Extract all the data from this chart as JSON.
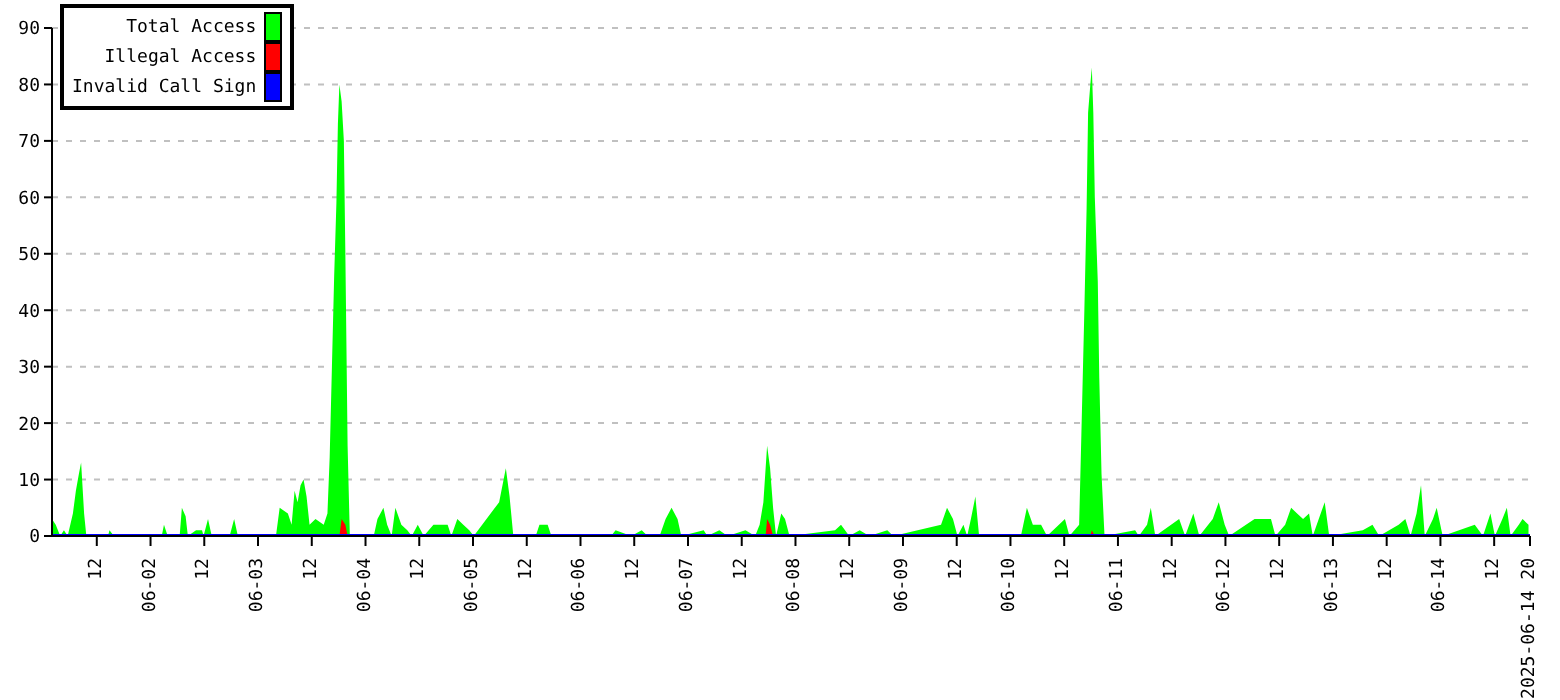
{
  "chart_data": {
    "type": "area",
    "xlim": [
      "2025-06-01T02:00",
      "2025-06-14T20:00"
    ],
    "xticks": [
      {
        "value": "2025-06-01T12:00",
        "label": "12"
      },
      {
        "value": "2025-06-02T00:00",
        "label": "06-02"
      },
      {
        "value": "2025-06-02T12:00",
        "label": "12"
      },
      {
        "value": "2025-06-03T00:00",
        "label": "06-03"
      },
      {
        "value": "2025-06-03T12:00",
        "label": "12"
      },
      {
        "value": "2025-06-04T00:00",
        "label": "06-04"
      },
      {
        "value": "2025-06-04T12:00",
        "label": "12"
      },
      {
        "value": "2025-06-05T00:00",
        "label": "06-05"
      },
      {
        "value": "2025-06-05T12:00",
        "label": "12"
      },
      {
        "value": "2025-06-06T00:00",
        "label": "06-06"
      },
      {
        "value": "2025-06-06T12:00",
        "label": "12"
      },
      {
        "value": "2025-06-07T00:00",
        "label": "06-07"
      },
      {
        "value": "2025-06-07T12:00",
        "label": "12"
      },
      {
        "value": "2025-06-08T00:00",
        "label": "06-08"
      },
      {
        "value": "2025-06-08T12:00",
        "label": "12"
      },
      {
        "value": "2025-06-09T00:00",
        "label": "06-09"
      },
      {
        "value": "2025-06-09T12:00",
        "label": "12"
      },
      {
        "value": "2025-06-10T00:00",
        "label": "06-10"
      },
      {
        "value": "2025-06-10T12:00",
        "label": "12"
      },
      {
        "value": "2025-06-11T00:00",
        "label": "06-11"
      },
      {
        "value": "2025-06-11T12:00",
        "label": "12"
      },
      {
        "value": "2025-06-12T00:00",
        "label": "06-12"
      },
      {
        "value": "2025-06-12T12:00",
        "label": "12"
      },
      {
        "value": "2025-06-13T00:00",
        "label": "06-13"
      },
      {
        "value": "2025-06-13T12:00",
        "label": "12"
      },
      {
        "value": "2025-06-14T00:00",
        "label": "06-14"
      },
      {
        "value": "2025-06-14T12:00",
        "label": "12"
      },
      {
        "value": "2025-06-14T20:00",
        "label": "2025-06-14 20"
      }
    ],
    "ylim": [
      0,
      90
    ],
    "yticks": [
      0,
      10,
      20,
      30,
      40,
      50,
      60,
      70,
      80,
      90
    ],
    "grid": "y",
    "legend": "top left",
    "series": [
      {
        "name": "Total Access",
        "color": "#00ff00",
        "x": [
          "2025-06-01T02:00",
          "2025-06-01T02:50",
          "2025-06-01T03:50",
          "2025-06-01T04:40",
          "2025-06-01T05:30",
          "2025-06-01T06:40",
          "2025-06-01T07:20",
          "2025-06-01T08:00",
          "2025-06-01T08:30",
          "2025-06-01T09:10",
          "2025-06-01T09:40",
          "2025-06-01T14:30",
          "2025-06-01T14:50",
          "2025-06-01T15:50",
          "2025-06-02T02:30",
          "2025-06-02T03:00",
          "2025-06-02T03:50",
          "2025-06-02T06:30",
          "2025-06-02T07:00",
          "2025-06-02T07:50",
          "2025-06-02T08:20",
          "2025-06-02T10:10",
          "2025-06-02T11:30",
          "2025-06-02T11:50",
          "2025-06-02T12:50",
          "2025-06-02T13:40",
          "2025-06-02T17:40",
          "2025-06-02T18:40",
          "2025-06-02T19:30",
          "2025-06-03T04:00",
          "2025-06-03T04:50",
          "2025-06-03T06:40",
          "2025-06-03T07:30",
          "2025-06-03T08:10",
          "2025-06-03T08:50",
          "2025-06-03T09:30",
          "2025-06-03T10:10",
          "2025-06-03T10:50",
          "2025-06-03T11:30",
          "2025-06-03T12:50",
          "2025-06-03T14:40",
          "2025-06-03T15:30",
          "2025-06-03T16:00",
          "2025-06-03T16:30",
          "2025-06-03T17:00",
          "2025-06-03T17:30",
          "2025-06-03T17:50",
          "2025-06-03T18:10",
          "2025-06-03T18:40",
          "2025-06-03T19:10",
          "2025-06-03T19:30",
          "2025-06-03T20:00",
          "2025-06-03T20:30",
          "2025-06-04T01:50",
          "2025-06-04T02:40",
          "2025-06-04T04:00",
          "2025-06-04T04:50",
          "2025-06-04T05:50",
          "2025-06-04T06:40",
          "2025-06-04T08:00",
          "2025-06-04T09:20",
          "2025-06-04T10:20",
          "2025-06-04T11:40",
          "2025-06-04T13:00",
          "2025-06-04T15:10",
          "2025-06-04T18:20",
          "2025-06-04T19:10",
          "2025-06-04T20:30",
          "2025-06-04T21:50",
          "2025-06-04T23:10",
          "2025-06-05T00:10",
          "2025-06-05T05:50",
          "2025-06-05T06:50",
          "2025-06-05T07:20",
          "2025-06-05T08:10",
          "2025-06-05T09:00",
          "2025-06-05T14:00",
          "2025-06-05T14:50",
          "2025-06-05T16:40",
          "2025-06-05T17:30",
          "2025-06-06T06:50",
          "2025-06-06T07:50",
          "2025-06-06T11:20",
          "2025-06-06T13:40",
          "2025-06-06T15:00",
          "2025-06-06T17:40",
          "2025-06-06T19:00",
          "2025-06-06T20:20",
          "2025-06-06T21:40",
          "2025-06-06T22:30",
          "2025-06-07T03:30",
          "2025-06-07T04:20",
          "2025-06-07T07:00",
          "2025-06-07T08:50",
          "2025-06-07T12:50",
          "2025-06-07T15:00",
          "2025-06-07T16:00",
          "2025-06-07T16:50",
          "2025-06-07T17:20",
          "2025-06-07T17:40",
          "2025-06-07T18:20",
          "2025-06-07T19:00",
          "2025-06-07T19:40",
          "2025-06-07T20:50",
          "2025-06-07T21:40",
          "2025-06-07T22:40",
          "2025-06-08T08:50",
          "2025-06-08T10:10",
          "2025-06-08T12:00",
          "2025-06-08T14:20",
          "2025-06-08T16:30",
          "2025-06-08T20:30",
          "2025-06-08T21:50",
          "2025-06-09T08:30",
          "2025-06-09T09:50",
          "2025-06-09T11:10",
          "2025-06-09T12:10",
          "2025-06-09T13:30",
          "2025-06-09T14:20",
          "2025-06-09T15:10",
          "2025-06-09T16:10",
          "2025-06-09T17:00",
          "2025-06-10T02:20",
          "2025-06-10T03:40",
          "2025-06-10T05:00",
          "2025-06-10T06:50",
          "2025-06-10T08:10",
          "2025-06-10T12:10",
          "2025-06-10T13:10",
          "2025-06-10T15:20",
          "2025-06-10T15:50",
          "2025-06-10T16:30",
          "2025-06-10T17:00",
          "2025-06-10T17:20",
          "2025-06-10T17:50",
          "2025-06-10T18:10",
          "2025-06-10T18:30",
          "2025-06-10T18:50",
          "2025-06-10T19:30",
          "2025-06-10T19:50",
          "2025-06-10T20:20",
          "2025-06-10T21:00",
          "2025-06-11T03:50",
          "2025-06-11T04:40",
          "2025-06-11T06:30",
          "2025-06-11T07:20",
          "2025-06-11T08:20",
          "2025-06-11T13:40",
          "2025-06-11T15:00",
          "2025-06-11T16:50",
          "2025-06-11T18:10",
          "2025-06-11T21:10",
          "2025-06-11T22:30",
          "2025-06-11T23:50",
          "2025-06-12T00:50",
          "2025-06-12T06:30",
          "2025-06-12T10:10",
          "2025-06-12T11:10",
          "2025-06-12T13:20",
          "2025-06-12T14:40",
          "2025-06-12T16:00",
          "2025-06-12T17:20",
          "2025-06-12T18:40",
          "2025-06-12T19:30",
          "2025-06-12T20:50",
          "2025-06-12T22:10",
          "2025-06-12T23:10",
          "2025-06-13T06:40",
          "2025-06-13T08:50",
          "2025-06-13T10:20",
          "2025-06-13T14:40",
          "2025-06-13T16:10",
          "2025-06-13T17:20",
          "2025-06-13T18:40",
          "2025-06-13T19:40",
          "2025-06-13T20:30",
          "2025-06-13T22:20",
          "2025-06-13T23:10",
          "2025-06-14T00:30",
          "2025-06-14T07:40",
          "2025-06-14T09:30",
          "2025-06-14T10:20",
          "2025-06-14T11:10",
          "2025-06-14T12:10",
          "2025-06-14T13:50",
          "2025-06-14T14:50",
          "2025-06-14T15:40",
          "2025-06-14T17:30",
          "2025-06-14T18:20",
          "2025-06-14T19:40"
        ],
        "values": [
          3,
          2,
          0,
          1,
          0,
          4,
          8,
          11,
          13,
          4,
          0,
          0,
          1,
          0,
          0,
          2,
          0,
          0,
          5,
          3.5,
          0,
          1,
          1,
          0,
          3,
          0,
          0,
          3,
          0,
          0,
          5,
          4,
          2,
          8,
          6,
          9,
          10,
          7,
          2,
          3,
          2,
          4,
          14,
          30,
          46,
          59,
          73,
          80,
          77,
          70,
          50,
          16,
          0,
          0,
          3,
          5,
          2,
          0,
          5,
          2,
          1,
          0,
          2,
          0,
          2,
          2,
          0,
          3,
          2,
          1,
          0,
          6,
          10,
          12,
          7,
          0,
          0,
          2,
          2,
          0,
          0,
          1,
          0,
          1,
          0,
          0,
          3,
          5,
          3,
          0,
          1,
          0,
          1,
          0,
          1,
          0,
          2,
          6,
          12,
          16,
          12,
          5,
          0,
          4,
          3,
          0,
          1,
          2,
          0,
          1,
          0,
          1,
          0,
          2,
          5,
          3,
          0,
          2,
          0,
          3,
          7,
          0,
          0,
          5,
          2,
          2,
          0,
          3,
          0,
          2,
          18,
          40,
          58,
          75,
          80,
          83,
          75,
          60,
          45,
          28,
          11,
          0,
          1,
          0,
          2,
          5,
          0,
          3,
          0,
          4,
          0,
          3,
          6,
          2,
          0,
          3,
          3,
          0,
          2,
          5,
          4,
          3,
          4,
          0,
          3,
          6,
          0,
          1,
          2,
          0,
          2,
          3,
          0,
          4,
          9,
          0,
          3,
          5,
          0,
          2,
          0,
          2,
          4,
          0,
          3,
          5,
          0,
          2,
          3,
          2
        ]
      },
      {
        "name": "Illegal Access",
        "color": "#ff0000",
        "x": [
          "2025-06-01T02:00",
          "2025-06-03T18:10",
          "2025-06-03T18:40",
          "2025-06-03T19:30",
          "2025-06-03T20:00",
          "2025-06-07T17:20",
          "2025-06-07T17:40",
          "2025-06-07T18:20",
          "2025-06-07T19:00",
          "2025-06-10T17:50",
          "2025-06-10T18:10",
          "2025-06-10T18:50",
          "2025-06-14T20:00"
        ],
        "values": [
          0,
          0,
          3,
          2,
          0,
          0,
          3,
          2,
          0,
          0,
          1,
          0,
          0
        ]
      },
      {
        "name": "Invalid Call Sign",
        "color": "#0000ff",
        "type": "line",
        "x": [
          "2025-06-01T02:00",
          "2025-06-14T20:00"
        ],
        "values": [
          0,
          0
        ]
      }
    ]
  }
}
